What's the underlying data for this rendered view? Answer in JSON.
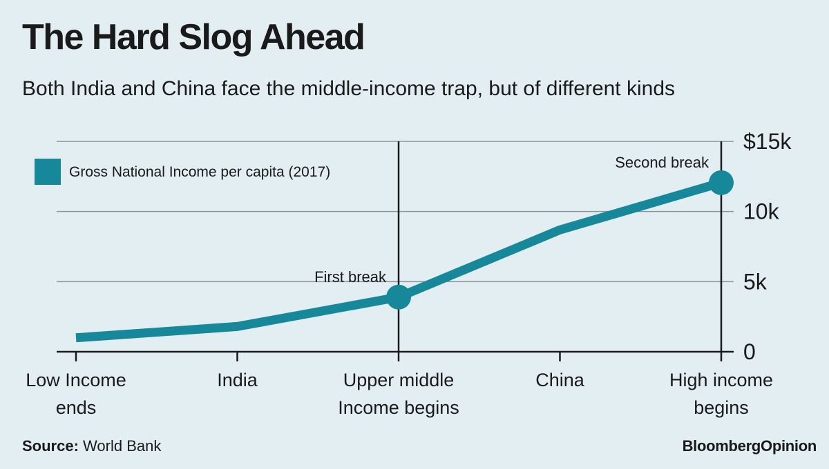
{
  "header": {
    "title": "The Hard Slog Ahead",
    "subtitle": "Both India and China face the middle-income trap, but of different kinds"
  },
  "footer": {
    "source_label": "Source:",
    "source_value": "World Bank",
    "brand": "BloombergOpinion"
  },
  "colors": {
    "background": "#e3eef2",
    "series": "#17879a",
    "gridline": "#8c969a",
    "axis": "#1a1a1a"
  },
  "chart_data": {
    "type": "line",
    "categories": [
      [
        "Low Income",
        "ends"
      ],
      [
        "India"
      ],
      [
        "Upper middle",
        "Income begins"
      ],
      [
        "China"
      ],
      [
        "High income",
        "begins"
      ]
    ],
    "series": [
      {
        "name": "Gross National Income per capita (2017)",
        "values": [
          995,
          1800,
          3896,
          8690,
          12056
        ]
      }
    ],
    "y_ticks": [
      "0",
      "5k",
      "10k",
      "$15k"
    ],
    "y_tick_values": [
      0,
      5000,
      10000,
      15000
    ],
    "ylim": [
      0,
      15000
    ],
    "grid": true,
    "legend": "top-left",
    "highlight_indices": [
      2,
      4
    ],
    "vertical_lines_at": [
      2,
      4
    ],
    "annotations": [
      {
        "index": 2,
        "text": "First break"
      },
      {
        "index": 4,
        "text": "Second break"
      }
    ]
  }
}
